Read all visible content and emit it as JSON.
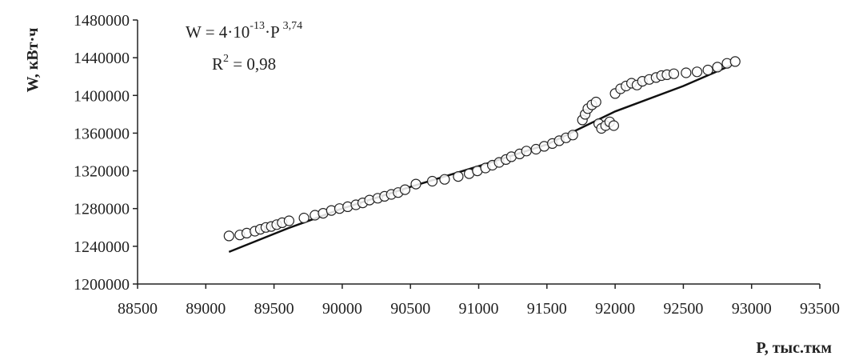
{
  "chart_data": {
    "type": "scatter",
    "title": "",
    "xlabel": "P, тыс.ткм",
    "ylabel": "W, кВт·ч",
    "xlim": [
      88500,
      93500
    ],
    "ylim": [
      1200000,
      1480000
    ],
    "x_ticks": [
      "88500",
      "89000",
      "89500",
      "90000",
      "90500",
      "91000",
      "91500",
      "92000",
      "92500",
      "93000",
      "93500"
    ],
    "y_ticks": [
      "1200000",
      "1240000",
      "1280000",
      "1320000",
      "1360000",
      "1400000",
      "1440000",
      "1480000"
    ],
    "grid": false,
    "legend": "none",
    "annotation": {
      "formula_prefix": "W = 4·10",
      "formula_exp1": "-13",
      "formula_mid": "·P",
      "formula_exp2": "3,74",
      "r2_prefix": "R",
      "r2_exp": "2",
      "r2_value": " = 0,98"
    },
    "trendline": {
      "points": [
        [
          89170,
          1234000
        ],
        [
          89600,
          1259000
        ],
        [
          90000,
          1280000
        ],
        [
          90500,
          1303000
        ],
        [
          91000,
          1325000
        ],
        [
          91500,
          1348000
        ],
        [
          92000,
          1383000
        ],
        [
          92500,
          1410000
        ],
        [
          92850,
          1432000
        ]
      ]
    },
    "series": [
      {
        "marker": "open-circle",
        "points": [
          [
            89170,
            1251000
          ],
          [
            89250,
            1252000
          ],
          [
            89300,
            1254000
          ],
          [
            89360,
            1256000
          ],
          [
            89400,
            1258000
          ],
          [
            89440,
            1260000
          ],
          [
            89480,
            1261000
          ],
          [
            89520,
            1263000
          ],
          [
            89560,
            1265000
          ],
          [
            89610,
            1267000
          ],
          [
            89720,
            1270000
          ],
          [
            89800,
            1273000
          ],
          [
            89860,
            1275000
          ],
          [
            89920,
            1278000
          ],
          [
            89980,
            1280000
          ],
          [
            90040,
            1282000
          ],
          [
            90100,
            1284000
          ],
          [
            90150,
            1286000
          ],
          [
            90200,
            1289000
          ],
          [
            90260,
            1291000
          ],
          [
            90310,
            1293000
          ],
          [
            90360,
            1295000
          ],
          [
            90410,
            1297000
          ],
          [
            90460,
            1300000
          ],
          [
            90540,
            1306000
          ],
          [
            90660,
            1309000
          ],
          [
            90750,
            1311000
          ],
          [
            90850,
            1314000
          ],
          [
            90930,
            1317000
          ],
          [
            90990,
            1320000
          ],
          [
            91050,
            1323000
          ],
          [
            91100,
            1326000
          ],
          [
            91150,
            1329000
          ],
          [
            91200,
            1332000
          ],
          [
            91240,
            1335000
          ],
          [
            91300,
            1338000
          ],
          [
            91350,
            1341000
          ],
          [
            91420,
            1343000
          ],
          [
            91480,
            1346000
          ],
          [
            91540,
            1349000
          ],
          [
            91590,
            1352000
          ],
          [
            91640,
            1355000
          ],
          [
            91690,
            1358000
          ],
          [
            91760,
            1374000
          ],
          [
            91780,
            1380000
          ],
          [
            91800,
            1386000
          ],
          [
            91830,
            1390000
          ],
          [
            91860,
            1393000
          ],
          [
            91880,
            1370000
          ],
          [
            91900,
            1365000
          ],
          [
            91930,
            1368000
          ],
          [
            91960,
            1372000
          ],
          [
            91990,
            1368000
          ],
          [
            92000,
            1402000
          ],
          [
            92040,
            1407000
          ],
          [
            92080,
            1410000
          ],
          [
            92120,
            1413000
          ],
          [
            92160,
            1411000
          ],
          [
            92200,
            1415000
          ],
          [
            92250,
            1417000
          ],
          [
            92300,
            1419000
          ],
          [
            92340,
            1421000
          ],
          [
            92380,
            1422000
          ],
          [
            92430,
            1423000
          ],
          [
            92520,
            1424000
          ],
          [
            92600,
            1425000
          ],
          [
            92680,
            1427000
          ],
          [
            92750,
            1430000
          ],
          [
            92820,
            1434000
          ],
          [
            92880,
            1436000
          ]
        ]
      }
    ]
  }
}
